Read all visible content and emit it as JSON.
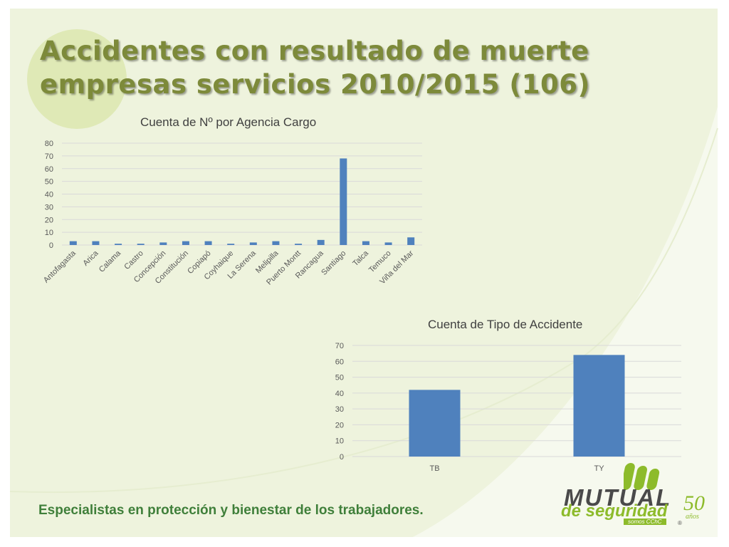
{
  "slide": {
    "title_line1": "Accidentes con resultado de muerte",
    "title_line2": "empresas servicios 2010/2015 (106)",
    "tagline": "Especialistas en protección y bienestar de los trabajadores.",
    "logo": {
      "name": "MUTUAL",
      "sub": "de seguridad",
      "tag": "somos CChC",
      "anniversary": "50",
      "anniversary_word": "años",
      "registered": "®"
    },
    "colors": {
      "background": "#eef3dd",
      "circle": "#dfe9b6",
      "title": "#7d8a3a",
      "tagline": "#3f7f3a",
      "bar": "#4f81bd",
      "logo_green": "#8dbb2b"
    }
  },
  "chart_data": [
    {
      "type": "bar",
      "title": "Cuenta de Nº por Agencia Cargo",
      "categories": [
        "Antofagasta",
        "Arica",
        "Calama",
        "Castro",
        "Concepción",
        "Constitución",
        "Copiapó",
        "Coyhaique",
        "La Serena",
        "Melipilla",
        "Puerto Montt",
        "Rancagua",
        "Santiago",
        "Talca",
        "Temuco",
        "Viña del Mar"
      ],
      "values": [
        3,
        3,
        1,
        1,
        2,
        3,
        3,
        1,
        2,
        3,
        1,
        4,
        68,
        3,
        2,
        6
      ],
      "ylim": [
        0,
        80
      ],
      "yticks": [
        0,
        10,
        20,
        30,
        40,
        50,
        60,
        70,
        80
      ],
      "grid": true,
      "legend": "none"
    },
    {
      "type": "bar",
      "title": "Cuenta de Tipo de Accidente",
      "categories": [
        "TB",
        "TY"
      ],
      "values": [
        42,
        64
      ],
      "ylim": [
        0,
        70
      ],
      "yticks": [
        0,
        10,
        20,
        30,
        40,
        50,
        60,
        70
      ],
      "grid": true,
      "legend": "none"
    }
  ]
}
